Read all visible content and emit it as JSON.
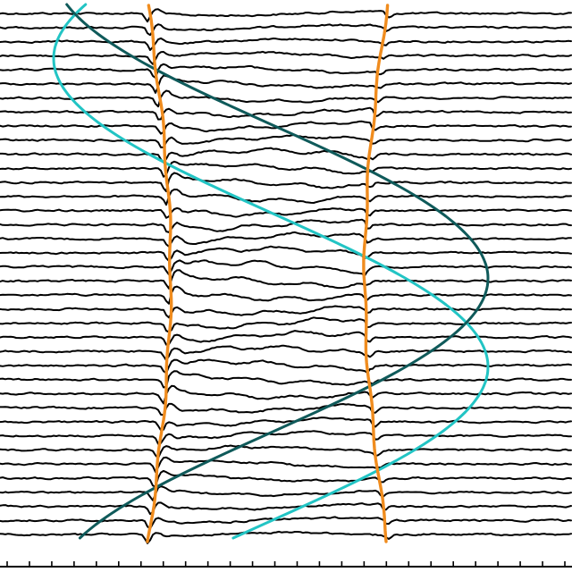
{
  "figure": {
    "trace_count": 38,
    "axis_tick_count": 26,
    "colors": {
      "background": "#ffffff",
      "trace": "#000000",
      "boundary": "#f08c1e",
      "sinusoid_light": "#22c4c4",
      "sinusoid_dark": "#0f5a5a"
    }
  }
}
